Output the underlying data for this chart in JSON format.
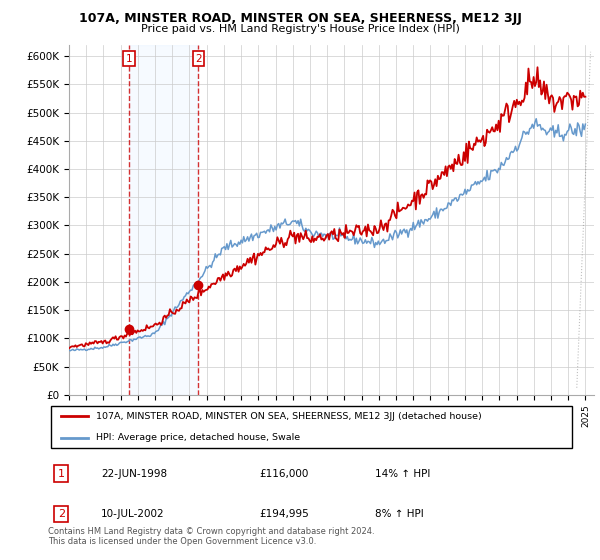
{
  "title": "107A, MINSTER ROAD, MINSTER ON SEA, SHEERNESS, ME12 3JJ",
  "subtitle": "Price paid vs. HM Land Registry's House Price Index (HPI)",
  "legend_line1": "107A, MINSTER ROAD, MINSTER ON SEA, SHEERNESS, ME12 3JJ (detached house)",
  "legend_line2": "HPI: Average price, detached house, Swale",
  "sale1_label": "1",
  "sale1_date": "22-JUN-1998",
  "sale1_price": "£116,000",
  "sale1_hpi": "14% ↑ HPI",
  "sale2_label": "2",
  "sale2_date": "10-JUL-2002",
  "sale2_price": "£194,995",
  "sale2_hpi": "8% ↑ HPI",
  "footer": "Contains HM Land Registry data © Crown copyright and database right 2024.\nThis data is licensed under the Open Government Licence v3.0.",
  "red_color": "#cc0000",
  "blue_color": "#6699cc",
  "shade_color": "#ddeeff",
  "marker_color": "#cc0000",
  "ylim": [
    0,
    620000
  ],
  "yticks": [
    0,
    50000,
    100000,
    150000,
    200000,
    250000,
    300000,
    350000,
    400000,
    450000,
    500000,
    550000,
    600000
  ],
  "sale1_year": 1998.47,
  "sale1_value": 116000,
  "sale2_year": 2002.52,
  "sale2_value": 194995,
  "background_color": "#ffffff",
  "grid_color": "#cccccc"
}
